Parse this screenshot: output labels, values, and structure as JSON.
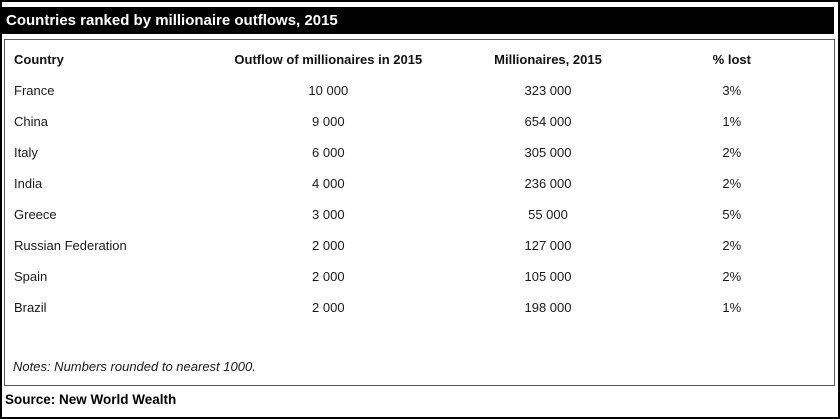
{
  "chart_data": {
    "type": "table",
    "title": "Countries ranked by millionaire outflows, 2015",
    "columns": [
      "Country",
      "Outflow of millionaires in 2015",
      "Millionaires, 2015",
      "% lost"
    ],
    "rows": [
      [
        "France",
        "10 000",
        "323 000",
        "3%"
      ],
      [
        "China",
        "9 000",
        "654 000",
        "1%"
      ],
      [
        "Italy",
        "6 000",
        "305 000",
        "2%"
      ],
      [
        "India",
        "4 000",
        "236 000",
        "2%"
      ],
      [
        "Greece",
        "3 000",
        "55 000",
        "5%"
      ],
      [
        "Russian Federation",
        "2 000",
        "127 000",
        "2%"
      ],
      [
        "Spain",
        "2 000",
        "105 000",
        "2%"
      ],
      [
        "Brazil",
        "2 000",
        "198 000",
        "1%"
      ]
    ],
    "numeric": {
      "countries": [
        "France",
        "China",
        "Italy",
        "India",
        "Greece",
        "Russian Federation",
        "Spain",
        "Brazil"
      ],
      "outflow_of_millionaires_2015": [
        10000,
        9000,
        6000,
        4000,
        3000,
        2000,
        2000,
        2000
      ],
      "millionaires_2015": [
        323000,
        654000,
        305000,
        236000,
        55000,
        127000,
        105000,
        198000
      ],
      "percent_lost": [
        3,
        1,
        2,
        2,
        5,
        2,
        2,
        1
      ]
    },
    "notes": "Notes: Numbers rounded to nearest 1000.",
    "source": "Source: New World Wealth",
    "layout": {
      "grid": false,
      "header_bold": true,
      "value_alignment": "center"
    }
  },
  "colors": {
    "title_background": "#000000",
    "title_text": "#ffffff",
    "body_text": "#1a1a1a",
    "outer_border": "#000000",
    "inner_border": "#595959"
  }
}
